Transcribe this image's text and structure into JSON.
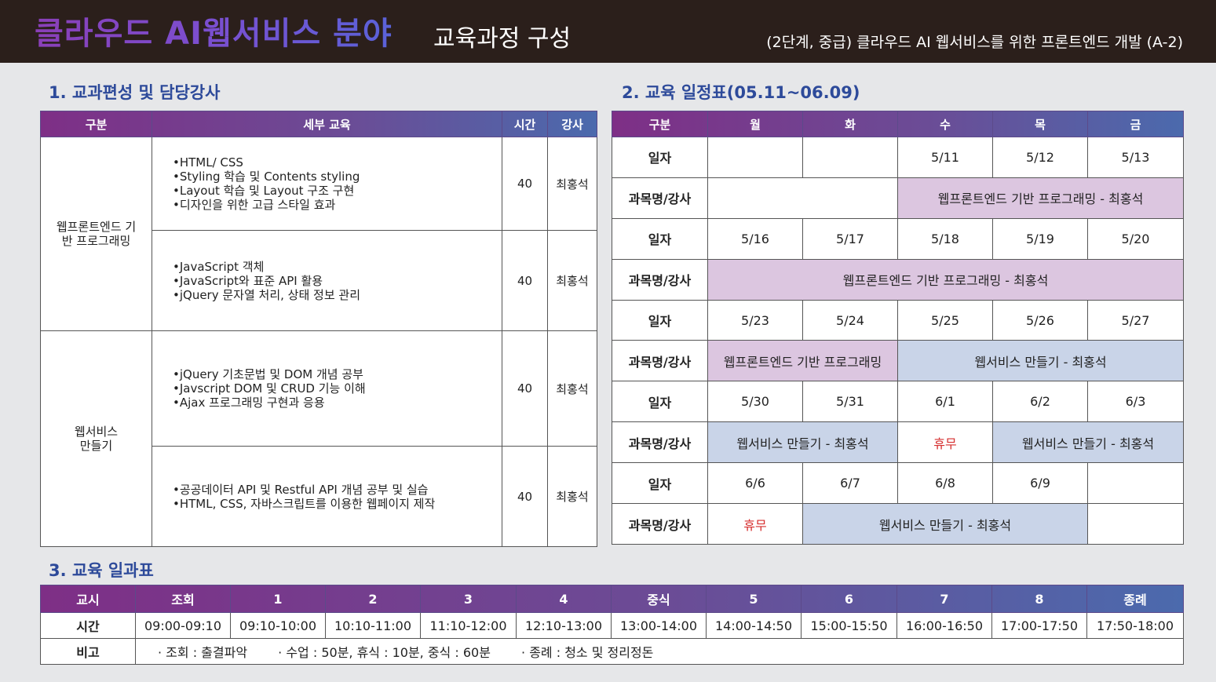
{
  "header": {
    "title": "클라우드 AI웹서비스 분야",
    "subtitle": "교육과정 구성",
    "course": "(2단계, 중급) 클라우드 AI 웹서비스를 위한 프론트엔드 개발 (A-2)"
  },
  "section1": {
    "title": "1. 교과편성 및 담당강사",
    "headers": [
      "구분",
      "세부 교육",
      "시간",
      "강사"
    ],
    "groups": [
      {
        "category": "웹프론트엔드 기반 프로그래밍",
        "rows": [
          {
            "items": [
              "•HTML/ CSS",
              "•Styling 학습 및 Contents styling",
              "•Layout 학습 및 Layout 구조 구현",
              "•디자인을 위한 고급 스타일 효과"
            ],
            "hours": "40",
            "instructor": "최홍석"
          },
          {
            "items": [
              "•JavaScript 객체",
              "•JavaScript와 표준 API 활용",
              "•jQuery 문자열 처리, 상태 정보 관리"
            ],
            "hours": "40",
            "instructor": "최홍석"
          }
        ]
      },
      {
        "category": "웹서비스 만들기",
        "rows": [
          {
            "items": [
              "•jQuery 기초문법 및 DOM 개념 공부",
              "•Javscript DOM 및 CRUD 기능 이해",
              "•Ajax 프로그래밍 구현과 응용"
            ],
            "hours": "40",
            "instructor": "최홍석"
          },
          {
            "items": [
              "•공공데이터 API 및 Restful API 개념 공부 및 실습",
              "•HTML, CSS, 자바스크립트를 이용한 웹페이지 제작"
            ],
            "hours": "40",
            "instructor": "최홍석"
          }
        ]
      }
    ]
  },
  "section2": {
    "title": "2. 교육 일정표(05.11~06.09)",
    "headers": [
      "구분",
      "월",
      "화",
      "수",
      "목",
      "금"
    ],
    "date_label": "일자",
    "subject_label": "과목명/강사",
    "weeks": [
      {
        "dates": [
          "",
          "",
          "5/11",
          "5/12",
          "5/13"
        ],
        "subjects": [
          "웹프론트엔드 기반 프로그래밍 - 최홍석"
        ]
      },
      {
        "dates": [
          "5/16",
          "5/17",
          "5/18",
          "5/19",
          "5/20"
        ],
        "subjects": [
          "웹프론트엔드 기반 프로그래밍 - 최홍석"
        ]
      },
      {
        "dates": [
          "5/23",
          "5/24",
          "5/25",
          "5/26",
          "5/27"
        ],
        "subjects": [
          "웹프론트엔드 기반 프로그래밍",
          "웹서비스 만들기 - 최홍석"
        ]
      },
      {
        "dates": [
          "5/30",
          "5/31",
          "6/1",
          "6/2",
          "6/3"
        ],
        "subjects": [
          "웹서비스 만들기 - 최홍석",
          "휴무",
          "웹서비스 만들기 - 최홍석"
        ]
      },
      {
        "dates": [
          "6/6",
          "6/7",
          "6/8",
          "6/9",
          ""
        ],
        "subjects": [
          "휴무",
          "웹서비스 만들기 - 최홍석"
        ]
      }
    ]
  },
  "section3": {
    "title": "3. 교육 일과표",
    "headers": [
      "교시",
      "조회",
      "1",
      "2",
      "3",
      "4",
      "중식",
      "5",
      "6",
      "7",
      "8",
      "종례"
    ],
    "time_label": "시간",
    "times": [
      "09:00-09:10",
      "09:10-10:00",
      "10:10-11:00",
      "11:10-12:00",
      "12:10-13:00",
      "13:00-14:00",
      "14:00-14:50",
      "15:00-15:50",
      "16:00-16:50",
      "17:00-17:50",
      "17:50-18:00"
    ],
    "note_label": "비고",
    "notes": [
      "· 조회 : 출결파악",
      "· 수업 : 50분, 휴식 : 10분, 중식 : 60분",
      "· 종례 : 청소 및 정리정돈"
    ]
  },
  "colors": {
    "header_bg": "#2b1f1b",
    "section_title": "#2d4a9a",
    "pink_cell": "#dcc6e0",
    "blue_cell": "#c9d4e8",
    "holiday": "#d62f2f"
  }
}
